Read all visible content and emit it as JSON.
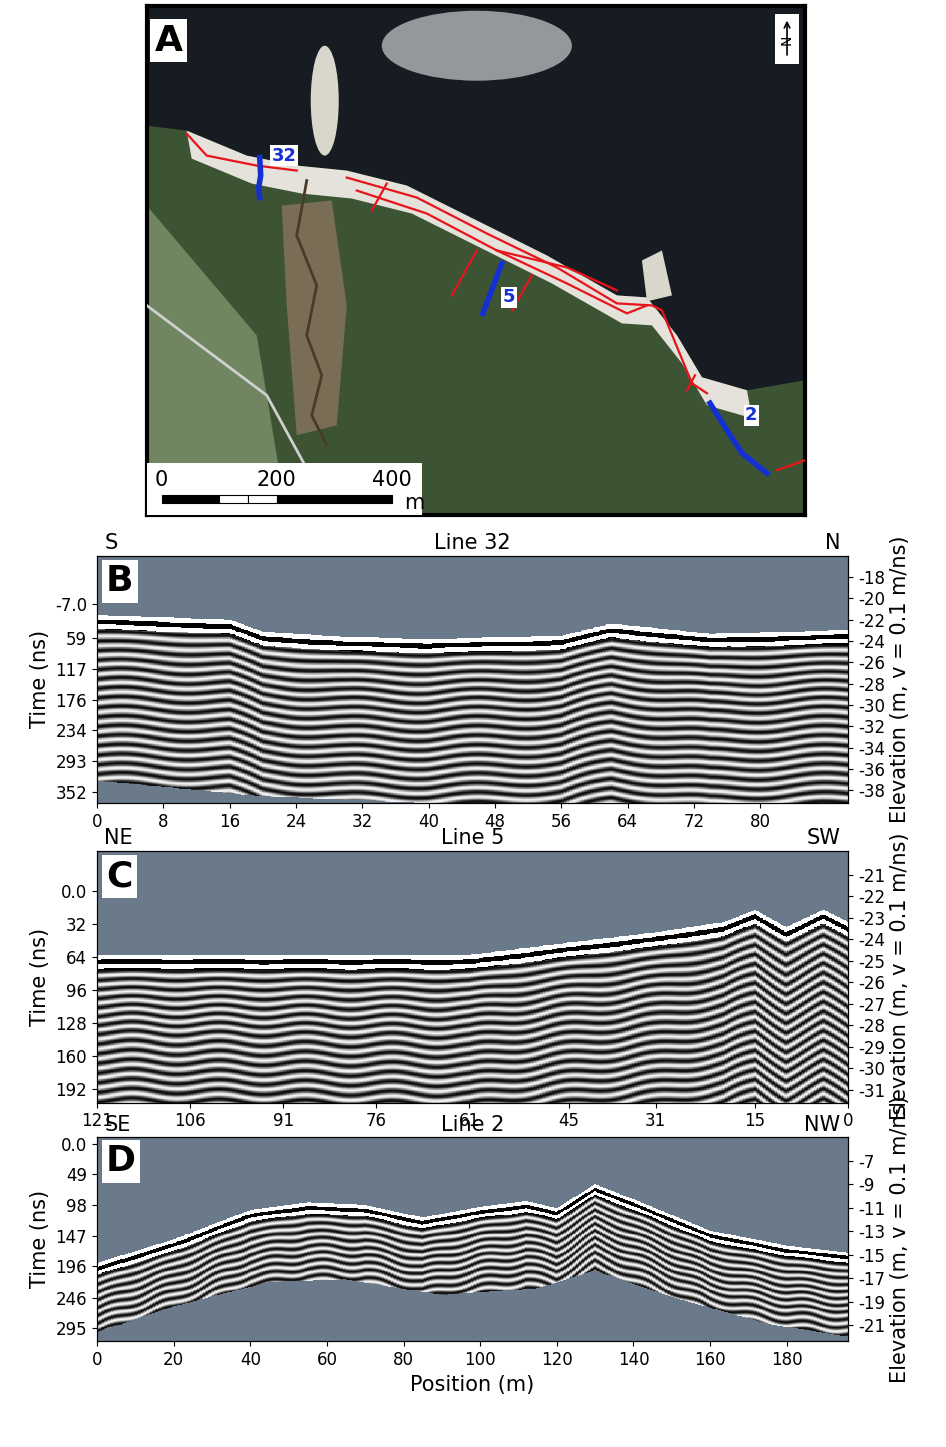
{
  "chart_data": [
    {
      "type": "map",
      "panel": "A",
      "north": "N",
      "line_labels": [
        "32",
        "5",
        "2"
      ],
      "scale_bar": {
        "ticks": [
          0,
          200,
          400
        ],
        "unit": "m"
      }
    },
    {
      "type": "radargram",
      "panel": "B",
      "title": "Line 32",
      "left_end": "S",
      "right_end": "N",
      "ylabel": "Time (ns)",
      "y2label": "Elevation (m, v = 0.1 m/ns)",
      "xlim": [
        0,
        90.6
      ],
      "xticks": [
        0,
        8,
        16,
        24,
        32,
        40,
        48,
        56,
        64,
        72,
        80
      ],
      "ylim": [
        373,
        -99
      ],
      "yticks": [
        {
          "value": -7,
          "label": "-7.0"
        },
        59,
        117,
        176,
        234,
        293,
        352
      ],
      "y2lim": [
        -39.2,
        -16.0
      ],
      "y2ticks": [
        -18,
        -20,
        -22,
        -24,
        -26,
        -28,
        -30,
        -32,
        -34,
        -36,
        -38
      ],
      "surface": {
        "x": [
          0,
          16,
          20,
          30,
          40,
          56,
          62,
          66,
          74,
          90.6
        ],
        "values": [
          14,
          23,
          46,
          56,
          60,
          54,
          31,
          37,
          50,
          43
        ]
      },
      "base": {
        "x": [
          0,
          20,
          40,
          90.6
        ],
        "values": [
          330,
          360,
          373,
          373
        ]
      }
    },
    {
      "type": "radargram",
      "panel": "C",
      "title": "Line 5",
      "left_end": "NE",
      "right_end": "SW",
      "ylabel": "Time (ns)",
      "y2label": "Elevation (m, v = 0.1 m/ns)",
      "xlim": [
        121,
        0
      ],
      "xticks": [
        121,
        106,
        91,
        76,
        61,
        45,
        31,
        15,
        0
      ],
      "ylim": [
        205,
        -39
      ],
      "yticks": [
        {
          "value": 0,
          "label": "0.0"
        },
        32,
        64,
        96,
        128,
        160,
        192
      ],
      "y2lim": [
        -31.6,
        -19.9
      ],
      "y2ticks": [
        -21,
        -22,
        -23,
        -24,
        -25,
        -26,
        -27,
        -28,
        -29,
        -30,
        -31
      ],
      "surface": {
        "x": [
          0,
          4,
          10,
          15,
          20,
          31,
          45,
          61,
          121
        ],
        "values": [
          30,
          18,
          35,
          18,
          30,
          40,
          50,
          62,
          62
        ]
      },
      "base": {
        "x": [
          0,
          121
        ],
        "values": [
          205,
          205
        ]
      }
    },
    {
      "type": "radargram",
      "panel": "D",
      "title": "Line 2",
      "left_end": "SE",
      "right_end": "NW",
      "ylabel": "Time (ns)",
      "y2label": "Elevation (m, v = 0.1 m/ns)",
      "xlabel": "Position (m)",
      "xlim": [
        0,
        196
      ],
      "xticks": [
        0,
        20,
        40,
        60,
        80,
        100,
        120,
        140,
        160,
        180
      ],
      "ylim": [
        316,
        -10
      ],
      "yticks": [
        {
          "value": 0,
          "label": "0.0"
        },
        49,
        98,
        147,
        196,
        246,
        295
      ],
      "y2lim": [
        -22.4,
        -5.0
      ],
      "y2ticks": [
        -7,
        -9,
        -11,
        -13,
        -15,
        -17,
        -19,
        -21
      ],
      "surface": {
        "x": [
          0,
          20,
          40,
          55,
          70,
          85,
          100,
          112,
          120,
          130,
          140,
          160,
          180,
          196
        ],
        "values": [
          191,
          153,
          106,
          94,
          98,
          118,
          101,
          92,
          103,
          65,
          89,
          139,
          163,
          174
        ]
      },
      "base": {
        "x": [
          0,
          20,
          45,
          65,
          90,
          115,
          130,
          150,
          175,
          196
        ],
        "values": [
          302,
          260,
          221,
          217,
          242,
          231,
          203,
          245,
          288,
          309
        ]
      }
    }
  ]
}
